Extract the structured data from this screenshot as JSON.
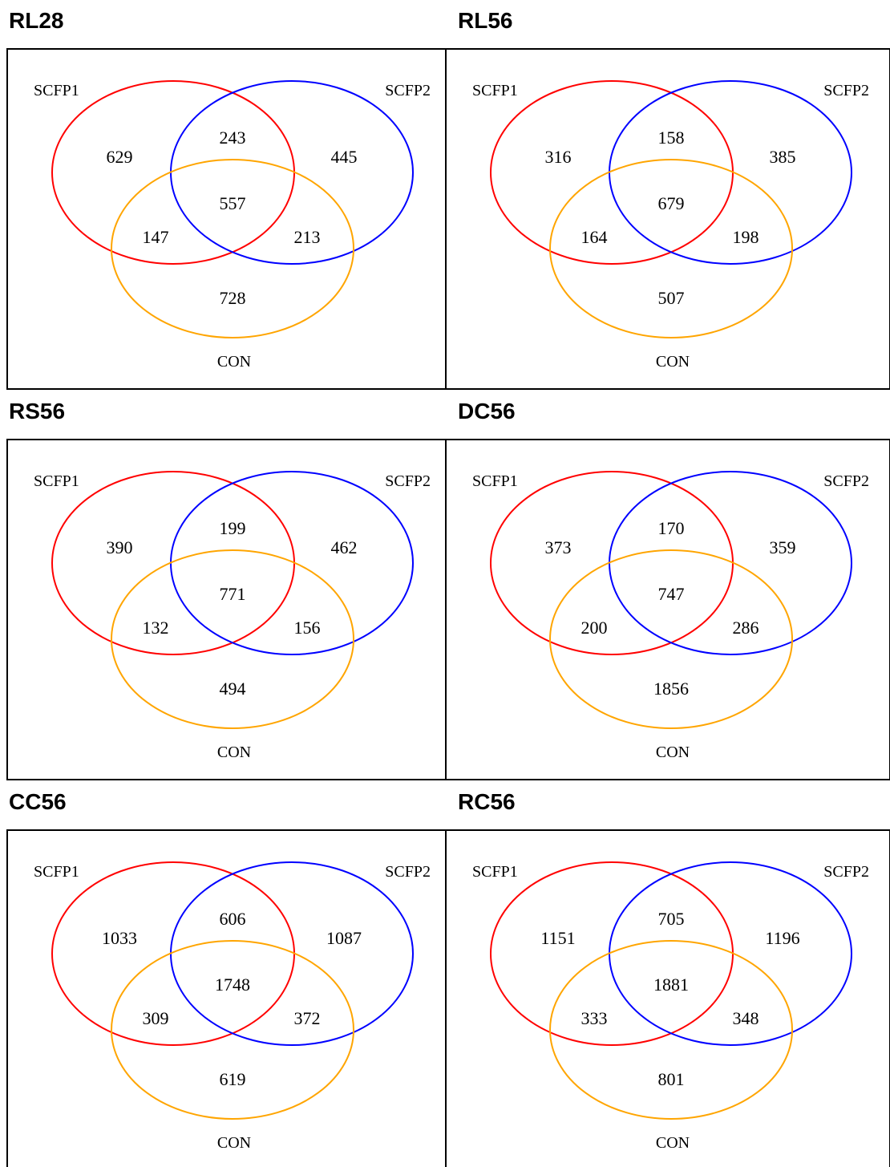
{
  "colors": {
    "set_a": "#ff0000",
    "set_b": "#0000ff",
    "set_c": "#ffa500"
  },
  "set_labels": {
    "a": "SCFP1",
    "b": "SCFP2",
    "c": "CON"
  },
  "panels": [
    {
      "title": "RL28",
      "counts": {
        "a_only": "629",
        "ab": "243",
        "b_only": "445",
        "abc": "557",
        "ac": "147",
        "bc": "213",
        "c_only": "728"
      }
    },
    {
      "title": "RL56",
      "counts": {
        "a_only": "316",
        "ab": "158",
        "b_only": "385",
        "abc": "679",
        "ac": "164",
        "bc": "198",
        "c_only": "507"
      }
    },
    {
      "title": "RS56",
      "counts": {
        "a_only": "390",
        "ab": "199",
        "b_only": "462",
        "abc": "771",
        "ac": "132",
        "bc": "156",
        "c_only": "494"
      }
    },
    {
      "title": "DC56",
      "counts": {
        "a_only": "373",
        "ab": "170",
        "b_only": "359",
        "abc": "747",
        "ac": "200",
        "bc": "286",
        "c_only": "1856"
      }
    },
    {
      "title": "CC56",
      "counts": {
        "a_only": "1033",
        "ab": "606",
        "b_only": "1087",
        "abc": "1748",
        "ac": "309",
        "bc": "372",
        "c_only": "619"
      }
    },
    {
      "title": "RC56",
      "counts": {
        "a_only": "1151",
        "ab": "705",
        "b_only": "1196",
        "abc": "1881",
        "ac": "333",
        "bc": "348",
        "c_only": "801"
      }
    }
  ]
}
